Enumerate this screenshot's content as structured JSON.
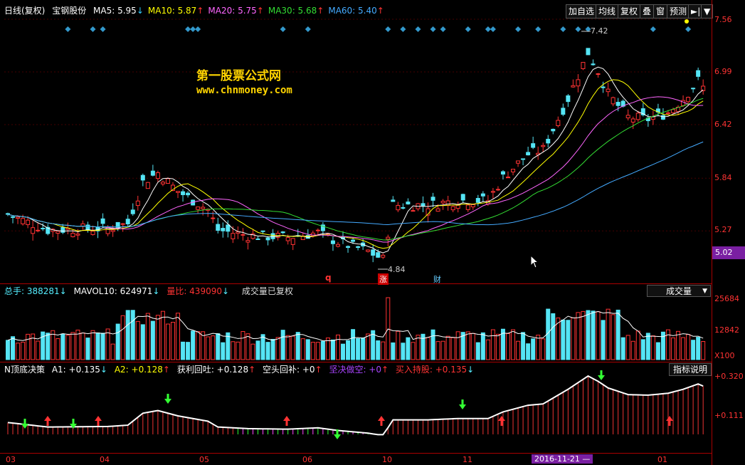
{
  "header": {
    "label": "日线(复权)",
    "stock": "宝钢股份",
    "ma": [
      {
        "text": "MA5: 5.95",
        "arrow": "↓",
        "color": "#ffffff",
        "arrowColor": "#3cf"
      },
      {
        "text": "MA10: 5.87",
        "arrow": "↑",
        "color": "#ffff00",
        "arrowColor": "#f33"
      },
      {
        "text": "MA20: 5.75",
        "arrow": "↑",
        "color": "#ff66ff",
        "arrowColor": "#f33"
      },
      {
        "text": "MA30: 5.68",
        "arrow": "↑",
        "color": "#33dd33",
        "arrowColor": "#f33"
      },
      {
        "text": "MA60: 5.40",
        "arrow": "↑",
        "color": "#44aaff",
        "arrowColor": "#f33"
      }
    ]
  },
  "toolbar": {
    "add": "加自选",
    "avg": "均线",
    "fq": "复权",
    "overlay": "叠",
    "window": "窗",
    "predict": "预测",
    "nav": "►|",
    "dd": "▼"
  },
  "watermark": {
    "line1": "第一股票公式网",
    "line2": "www.chnmoney.com"
  },
  "price_axis": {
    "labels": [
      "7.56",
      "6.99",
      "6.42",
      "5.84",
      "5.27"
    ],
    "current": "5.02"
  },
  "annotations": {
    "high": "7.42",
    "low": "4.84",
    "marks": [
      {
        "text": "q",
        "color": "#f33"
      },
      {
        "text": "涨",
        "color": "#fff",
        "bg": "#c00"
      },
      {
        "text": "财",
        "color": "#6cf"
      }
    ]
  },
  "volume": {
    "total": "总手: 388281",
    "total_arrow": "↓",
    "mavol": "MAVOL10: 624971",
    "mavol_arrow": "↓",
    "ratio": "量比: 439090",
    "ratio_arrow": "↓",
    "note": "成交量已复权",
    "dropdown": "成交量",
    "axis": [
      "25684",
      "12842",
      "X100"
    ]
  },
  "indicator": {
    "name": "N顶底决策",
    "a1": "A1: +0.135",
    "a1_arrow": "↓",
    "a2": "A2: +0.128",
    "a2_arrow": "↑",
    "profit": "获利回吐: +0.128",
    "profit_arrow": "↑",
    "cover": "空头回补: +0",
    "cover_arrow": "↑",
    "short": "坚决做空: +0",
    "short_arrow": "↑",
    "hold": "买入持股: +0.135",
    "hold_arrow": "↓",
    "help": "指标说明",
    "axis": [
      "+0.320",
      "+0.111"
    ]
  },
  "date_axis": {
    "labels": [
      "03",
      "04",
      "05",
      "06",
      "10",
      "11",
      "2016-11-21 —",
      "01"
    ]
  },
  "chart_data": {
    "type": "candlestick",
    "ylim": [
      4.84,
      7.56
    ],
    "x": [
      "03",
      "04",
      "05",
      "06",
      "10",
      "11",
      "01"
    ],
    "close_ma60_last": 5.4
  },
  "colors": {
    "up": "#ff3333",
    "down": "#55e5f5",
    "ma5": "#ffffff",
    "ma10": "#ffff00",
    "ma20": "#ff66ff",
    "ma30": "#33dd33",
    "ma60": "#44aaff",
    "frame": "#aa0000"
  }
}
